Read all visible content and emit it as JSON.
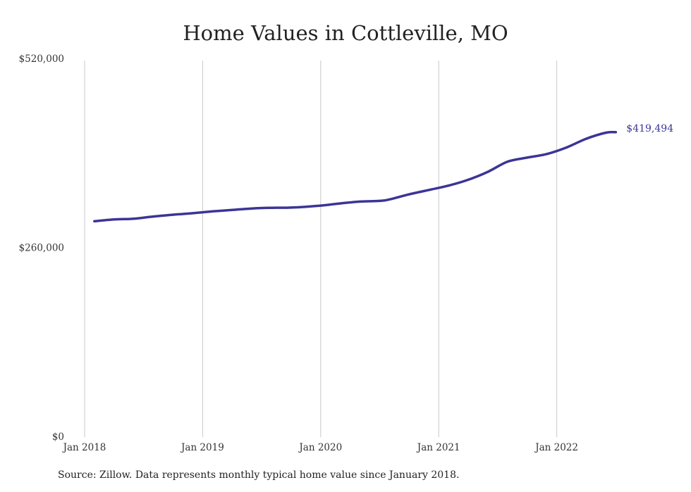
{
  "chart_data": {
    "type": "line",
    "title": "Home Values in Cottleville, MO",
    "xlabel": "",
    "ylabel": "",
    "xlim": [
      "2017-12",
      "2022-07"
    ],
    "ylim": [
      0,
      520000
    ],
    "y_ticks": [
      {
        "value": 0,
        "label": "$0"
      },
      {
        "value": 260000,
        "label": "$260,000"
      },
      {
        "value": 520000,
        "label": "$520,000"
      }
    ],
    "x_ticks": [
      {
        "value": "2018-01",
        "label": "Jan 2018"
      },
      {
        "value": "2019-01",
        "label": "Jan 2019"
      },
      {
        "value": "2020-01",
        "label": "Jan 2020"
      },
      {
        "value": "2021-01",
        "label": "Jan 2021"
      },
      {
        "value": "2022-01",
        "label": "Jan 2022"
      }
    ],
    "grid": {
      "vertical": true,
      "horizontal": false
    },
    "series": [
      {
        "color": "#3b3596",
        "end_label": "$419,494",
        "points": [
          {
            "x": "2018-02",
            "y": 297000
          },
          {
            "x": "2018-04",
            "y": 299500
          },
          {
            "x": "2018-06",
            "y": 300500
          },
          {
            "x": "2018-08",
            "y": 303500
          },
          {
            "x": "2018-10",
            "y": 306000
          },
          {
            "x": "2018-12",
            "y": 308000
          },
          {
            "x": "2019-02",
            "y": 310500
          },
          {
            "x": "2019-04",
            "y": 312500
          },
          {
            "x": "2019-06",
            "y": 314500
          },
          {
            "x": "2019-08",
            "y": 315500
          },
          {
            "x": "2019-10",
            "y": 315800
          },
          {
            "x": "2020-01",
            "y": 318500
          },
          {
            "x": "2020-03",
            "y": 321500
          },
          {
            "x": "2020-05",
            "y": 324000
          },
          {
            "x": "2020-07",
            "y": 325000
          },
          {
            "x": "2020-08",
            "y": 327000
          },
          {
            "x": "2020-10",
            "y": 334000
          },
          {
            "x": "2020-12",
            "y": 340000
          },
          {
            "x": "2021-02",
            "y": 346000
          },
          {
            "x": "2021-04",
            "y": 354000
          },
          {
            "x": "2021-06",
            "y": 365000
          },
          {
            "x": "2021-08",
            "y": 379000
          },
          {
            "x": "2021-10",
            "y": 384500
          },
          {
            "x": "2021-12",
            "y": 389500
          },
          {
            "x": "2022-02",
            "y": 398500
          },
          {
            "x": "2022-04",
            "y": 410500
          },
          {
            "x": "2022-06",
            "y": 418800
          },
          {
            "x": "2022-07",
            "y": 419494
          }
        ]
      }
    ]
  },
  "source": "Source: Zillow. Data represents monthly typical home value since January 2018."
}
